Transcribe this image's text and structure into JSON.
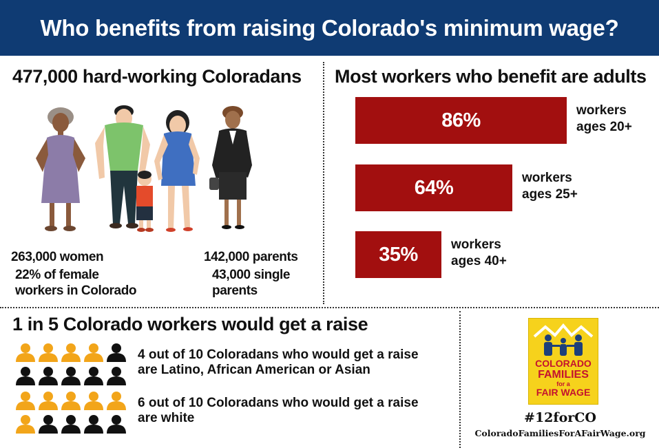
{
  "header": {
    "title": "Who benefits from raising Colorado's minimum wage?"
  },
  "left_panel": {
    "heading": "477,000 hard-working Coloradans",
    "women_count": "263,000 women",
    "women_line1": "22% of female",
    "women_line2": "workers in Colorado",
    "parents_count": "142,000 parents",
    "single_line1": "43,000 single",
    "single_line2": "parents"
  },
  "right_panel": {
    "heading": "Most workers who benefit are adults"
  },
  "chart_data": {
    "type": "bar",
    "orientation": "horizontal",
    "title": "Most workers who benefit are adults",
    "categories": [
      "workers ages 20+",
      "workers ages 25+",
      "workers ages 40+"
    ],
    "category_lines": [
      [
        "workers",
        "ages 20+"
      ],
      [
        "workers",
        "ages 25+"
      ],
      [
        "workers",
        "ages 40+"
      ]
    ],
    "values": [
      86,
      64,
      35
    ],
    "value_labels": [
      "86%",
      "64%",
      "35%"
    ],
    "unit": "%",
    "xlim": [
      0,
      100
    ],
    "grid": false,
    "bar_color": "#a20f0f"
  },
  "bottom_panel": {
    "heading": "1 in 5 Colorado workers would get a raise",
    "group1_line1": "4 out of 10 Coloradans who would get a raise",
    "group1_line2": "are Latino, African American or Asian",
    "group1_highlighted": 4,
    "group1_total": 10,
    "group2_line1": "6 out of 10 Coloradans who would get a raise",
    "group2_line2": "are white",
    "group2_highlighted": 6,
    "group2_total": 10,
    "highlight_color": "#f2a51a",
    "base_color": "#111111"
  },
  "logo": {
    "line1": "COLORADO",
    "line2": "FAMILIES",
    "line3": "for a",
    "line4": "FAIR WAGE",
    "icon": "family-house-icon"
  },
  "footer": {
    "hashtag": "#12forCO",
    "website": "ColoradoFamiliesForAFairWage.org"
  }
}
